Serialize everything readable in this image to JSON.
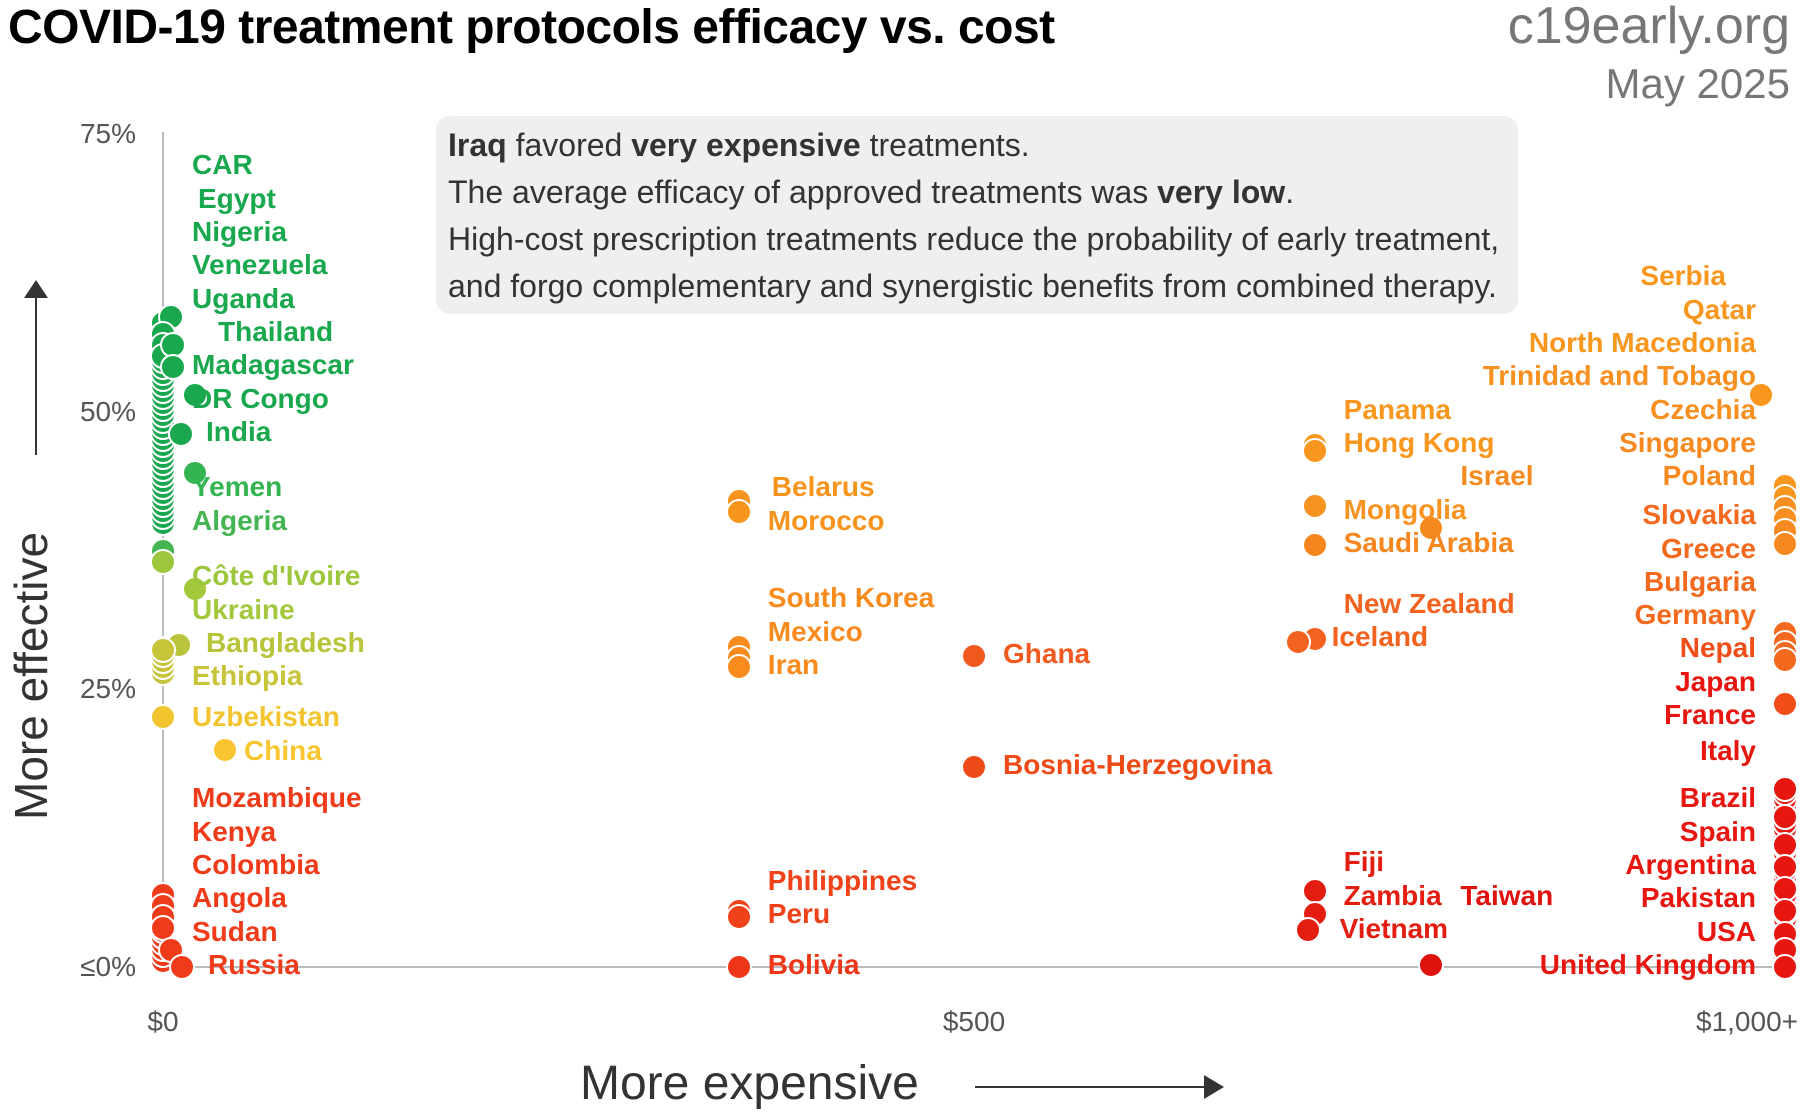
{
  "header": {
    "title": "COVID-19 treatment protocols efficacy vs. cost",
    "brand": "c19early.org",
    "date": "May 2025"
  },
  "info": {
    "line1": [
      "Iraq",
      " favored ",
      "very expensive",
      " treatments."
    ],
    "line2": [
      "The average efficacy of approved treatments was ",
      "very low",
      "."
    ],
    "line3": "High-cost prescription treatments reduce the probability of early treatment,",
    "line4": "and forgo complementary and synergistic benefits from combined therapy."
  },
  "axes": {
    "ylabel": "More effective",
    "xlabel": "More expensive",
    "yticks": [
      "75%",
      "50%",
      "25%",
      "≤0%"
    ],
    "xticks": [
      "$0",
      "$500",
      "$1,000+"
    ]
  },
  "chart_data": {
    "type": "scatter",
    "title": "COVID-19 treatment protocols efficacy vs. cost",
    "xlabel": "More expensive",
    "ylabel": "More effective",
    "xlim": [
      0,
      1000
    ],
    "ylim": [
      0,
      75
    ],
    "x_unit": "$",
    "y_unit": "%",
    "grid": false,
    "points": [
      {
        "name": "CAR",
        "x": 0,
        "y": 58,
        "color": "#1aa84e"
      },
      {
        "name": "Egypt",
        "x": 5,
        "y": 58.5,
        "color": "#1aa84e"
      },
      {
        "name": "Nigeria",
        "x": 0,
        "y": 57,
        "color": "#1aa84e"
      },
      {
        "name": "Venezuela",
        "x": 0,
        "y": 56,
        "color": "#1aa84e"
      },
      {
        "name": "Uganda",
        "x": 0,
        "y": 55,
        "color": "#1aa84e"
      },
      {
        "name": "Thailand",
        "x": 6,
        "y": 56,
        "color": "#1aa84e"
      },
      {
        "name": "Madagascar",
        "x": 6,
        "y": 54,
        "color": "#1aa84e"
      },
      {
        "name": "DR Congo",
        "x": 20,
        "y": 51.5,
        "color": "#1aa84e"
      },
      {
        "name": "India",
        "x": 11,
        "y": 48,
        "color": "#1aa84e"
      },
      {
        "name": "Yemen",
        "x": 20,
        "y": 44.5,
        "color": "#35b552"
      },
      {
        "name": "Algeria",
        "x": 0,
        "y": 37.5,
        "color": "#45b452"
      },
      {
        "name": "Côte d'Ivoire",
        "x": 0,
        "y": 36.5,
        "color": "#9cc63b"
      },
      {
        "name": "Ukraine",
        "x": 20,
        "y": 34,
        "color": "#a3c83c"
      },
      {
        "name": "Bangladesh",
        "x": 10,
        "y": 29,
        "color": "#b8c43a"
      },
      {
        "name": "Ethiopia",
        "x": 0,
        "y": 28.5,
        "color": "#c7c43a"
      },
      {
        "name": "Uzbekistan",
        "x": 0,
        "y": 22.5,
        "color": "#f2c530"
      },
      {
        "name": "China",
        "x": 38,
        "y": 19.5,
        "color": "#f9c530"
      },
      {
        "name": "Mozambique",
        "x": 0,
        "y": 6.5,
        "color": "#ef3b1a"
      },
      {
        "name": "Kenya",
        "x": 0,
        "y": 5.5,
        "color": "#ef3b1a"
      },
      {
        "name": "Colombia",
        "x": 0,
        "y": 4.5,
        "color": "#ef3b1a"
      },
      {
        "name": "Angola",
        "x": 0,
        "y": 3.5,
        "color": "#ef3b1a"
      },
      {
        "name": "Sudan",
        "x": 5,
        "y": 1.5,
        "color": "#ef3b1a"
      },
      {
        "name": "Russia",
        "x": 12,
        "y": 0,
        "color": "#ef3b1a"
      },
      {
        "name": "Belarus",
        "x": 355,
        "y": 42,
        "color": "#f7941d"
      },
      {
        "name": "Morocco",
        "x": 355,
        "y": 41,
        "color": "#f7941d"
      },
      {
        "name": "South Korea",
        "x": 355,
        "y": 28.8,
        "color": "#f98b1e"
      },
      {
        "name": "Mexico",
        "x": 355,
        "y": 27.8,
        "color": "#f98b1e"
      },
      {
        "name": "Iran",
        "x": 355,
        "y": 27,
        "color": "#f98b1e"
      },
      {
        "name": "Ghana",
        "x": 500,
        "y": 28,
        "color": "#f15a1f"
      },
      {
        "name": "Bosnia-Herzegovina",
        "x": 500,
        "y": 18,
        "color": "#ee4a18"
      },
      {
        "name": "Philippines",
        "x": 355,
        "y": 5,
        "color": "#ef4218"
      },
      {
        "name": "Peru",
        "x": 355,
        "y": 4.5,
        "color": "#ef4218"
      },
      {
        "name": "Bolivia",
        "x": 355,
        "y": 0,
        "color": "#ee3517"
      },
      {
        "name": "Panama",
        "x": 710,
        "y": 47,
        "color": "#f8961d"
      },
      {
        "name": "Hong Kong",
        "x": 710,
        "y": 46.5,
        "color": "#f8961d"
      },
      {
        "name": "Israel",
        "x": 782,
        "y": 39.5,
        "color": "#f58a1e"
      },
      {
        "name": "Mongolia",
        "x": 710,
        "y": 41.5,
        "color": "#f79320"
      },
      {
        "name": "Saudi Arabia",
        "x": 710,
        "y": 38,
        "color": "#f6871f"
      },
      {
        "name": "New Zealand",
        "x": 710,
        "y": 29.5,
        "color": "#f3621e"
      },
      {
        "name": "Iceland",
        "x": 700,
        "y": 29.3,
        "color": "#f3621e"
      },
      {
        "name": "Fiji",
        "x": 710,
        "y": 6.8,
        "color": "#e31e10"
      },
      {
        "name": "Zambia",
        "x": 710,
        "y": 4.8,
        "color": "#e31e10"
      },
      {
        "name": "Taiwan",
        "x": 782,
        "y": 0.2,
        "color": "#e0120e"
      },
      {
        "name": "Vietnam",
        "x": 706,
        "y": 3.3,
        "color": "#e31e10"
      },
      {
        "name": "Serbia",
        "x": 985,
        "y": 51.5,
        "color": "#f8961d"
      },
      {
        "name": "Qatar",
        "x": 1000,
        "y": 43.3,
        "color": "#f8961d"
      },
      {
        "name": "North Macedonia",
        "x": 1000,
        "y": 42.3,
        "color": "#f8961d"
      },
      {
        "name": "Trinidad and Tobago",
        "x": 1000,
        "y": 41.3,
        "color": "#f79020"
      },
      {
        "name": "Czechia",
        "x": 1000,
        "y": 40.3,
        "color": "#f79020"
      },
      {
        "name": "Singapore",
        "x": 1000,
        "y": 39.3,
        "color": "#f6891f"
      },
      {
        "name": "Poland",
        "x": 1000,
        "y": 38.1,
        "color": "#f6891f"
      },
      {
        "name": "Slovakia",
        "x": 1000,
        "y": 30.1,
        "color": "#f36a1e"
      },
      {
        "name": "Greece",
        "x": 1000,
        "y": 29.2,
        "color": "#f36a1e"
      },
      {
        "name": "Bulgaria",
        "x": 1000,
        "y": 28.3,
        "color": "#f36a1e"
      },
      {
        "name": "Germany",
        "x": 1000,
        "y": 27.6,
        "color": "#f36a1e"
      },
      {
        "name": "Nepal",
        "x": 1000,
        "y": 23.7,
        "color": "#f04d18"
      },
      {
        "name": "Japan",
        "x": 1000,
        "y": 16,
        "color": "#e7160f"
      },
      {
        "name": "France",
        "x": 1000,
        "y": 13.5,
        "color": "#e7160f"
      },
      {
        "name": "Italy",
        "x": 1000,
        "y": 11,
        "color": "#e7160f"
      },
      {
        "name": "Brazil",
        "x": 1000,
        "y": 9,
        "color": "#e7160f"
      },
      {
        "name": "Spain",
        "x": 1000,
        "y": 7,
        "color": "#e7160f"
      },
      {
        "name": "Argentina",
        "x": 1000,
        "y": 5,
        "color": "#e7160f"
      },
      {
        "name": "Pakistan",
        "x": 1000,
        "y": 3,
        "color": "#e7160f"
      },
      {
        "name": "USA",
        "x": 1000,
        "y": 1.5,
        "color": "#e7160f"
      },
      {
        "name": "United Kingdom",
        "x": 1000,
        "y": 0,
        "color": "#e7160f"
      }
    ],
    "stacks": [
      {
        "x": 0,
        "y_from": 40,
        "y_to": 58,
        "color": "#1aa84e"
      },
      {
        "x": 0,
        "y_from": 26.5,
        "y_to": 29,
        "color": "#c7c43a"
      },
      {
        "x": 0,
        "y_from": 0.5,
        "y_to": 6.5,
        "color": "#ef3b1a"
      },
      {
        "x": 1000,
        "y_from": 0,
        "y_to": 16,
        "color": "#e7160f"
      },
      {
        "x": 1000,
        "y_from": 27.5,
        "y_to": 30,
        "color": "#f36a1e"
      },
      {
        "x": 1000,
        "y_from": 40,
        "y_to": 43.3,
        "color": "#f79020"
      }
    ],
    "labels": [
      {
        "text": "CAR",
        "x": 0,
        "y": 72,
        "color": "#1aa84e"
      },
      {
        "text": "Egypt",
        "x": 0,
        "y": 69,
        "color": "#1aa84e",
        "dx": 6
      },
      {
        "text": "Nigeria",
        "x": 0,
        "y": 66,
        "color": "#1aa84e"
      },
      {
        "text": "Venezuela",
        "x": 0,
        "y": 63,
        "color": "#1aa84e"
      },
      {
        "text": "Uganda",
        "x": 0,
        "y": 60,
        "color": "#1aa84e"
      },
      {
        "text": "Thailand",
        "x": 0,
        "y": 57,
        "color": "#1aa84e",
        "dx": 26
      },
      {
        "text": "Madagascar",
        "x": 0,
        "y": 54,
        "color": "#1aa84e"
      },
      {
        "text": "DR Congo",
        "x": 0,
        "y": 51,
        "color": "#1aa84e"
      },
      {
        "text": "India",
        "x": 0,
        "y": 48,
        "color": "#1aa84e",
        "dx": 14
      },
      {
        "text": "Yemen",
        "x": 0,
        "y": 43,
        "color": "#35b552"
      },
      {
        "text": "Algeria",
        "x": 0,
        "y": 40,
        "color": "#45b452"
      },
      {
        "text": "Côte d'Ivoire",
        "x": 0,
        "y": 35,
        "color": "#9cc63b"
      },
      {
        "text": "Ukraine",
        "x": 0,
        "y": 32,
        "color": "#a3c83c"
      },
      {
        "text": "Bangladesh",
        "x": 0,
        "y": 29,
        "color": "#b8c43a",
        "dx": 14
      },
      {
        "text": "Ethiopia",
        "x": 0,
        "y": 26,
        "color": "#c7c43a"
      },
      {
        "text": "Uzbekistan",
        "x": 0,
        "y": 22.3,
        "color": "#f2c530"
      },
      {
        "text": "China",
        "x": 0,
        "y": 19.3,
        "color": "#f9c530",
        "dx": 52
      },
      {
        "text": "Mozambique",
        "x": 0,
        "y": 15,
        "color": "#ef3b1a"
      },
      {
        "text": "Kenya",
        "x": 0,
        "y": 12,
        "color": "#ef3b1a"
      },
      {
        "text": "Colombia",
        "x": 0,
        "y": 9,
        "color": "#ef3b1a"
      },
      {
        "text": "Angola",
        "x": 0,
        "y": 6,
        "color": "#ef3b1a"
      },
      {
        "text": "Sudan",
        "x": 0,
        "y": 3,
        "color": "#ef3b1a"
      },
      {
        "text": "Russia",
        "x": 0,
        "y": 0,
        "color": "#ef3b1a",
        "dx": 16
      },
      {
        "text": "Belarus",
        "x": 355,
        "y": 43,
        "color": "#f7941d",
        "dx": 4
      },
      {
        "text": "Morocco",
        "x": 355,
        "y": 40,
        "color": "#f7941d"
      },
      {
        "text": "South Korea",
        "x": 355,
        "y": 33,
        "color": "#f98b1e"
      },
      {
        "text": "Mexico",
        "x": 355,
        "y": 30,
        "color": "#f98b1e"
      },
      {
        "text": "Iran",
        "x": 355,
        "y": 27,
        "color": "#f98b1e"
      },
      {
        "text": "Ghana",
        "x": 500,
        "y": 28,
        "color": "#f15a1f"
      },
      {
        "text": "Bosnia-Herzegovina",
        "x": 500,
        "y": 18,
        "color": "#ee4a18"
      },
      {
        "text": "Philippines",
        "x": 355,
        "y": 7.6,
        "color": "#ef4218"
      },
      {
        "text": "Peru",
        "x": 355,
        "y": 4.6,
        "color": "#ef4218"
      },
      {
        "text": "Bolivia",
        "x": 355,
        "y": 0,
        "color": "#ee3517"
      },
      {
        "text": "Panama",
        "x": 710,
        "y": 50,
        "color": "#f8961d"
      },
      {
        "text": "Hong Kong",
        "x": 710,
        "y": 47,
        "color": "#f8961d"
      },
      {
        "text": "Israel",
        "x": 782,
        "y": 44,
        "color": "#f58a1e",
        "dx": 0
      },
      {
        "text": "Mongolia",
        "x": 710,
        "y": 41,
        "color": "#f79320"
      },
      {
        "text": "Saudi Arabia",
        "x": 710,
        "y": 38,
        "color": "#f6871f"
      },
      {
        "text": "New Zealand",
        "x": 710,
        "y": 32.5,
        "color": "#f3621e"
      },
      {
        "text": "Iceland",
        "x": 710,
        "y": 29.5,
        "color": "#f3621e",
        "dx": -12
      },
      {
        "text": "Fiji",
        "x": 710,
        "y": 9.3,
        "color": "#e31e10"
      },
      {
        "text": "Zambia",
        "x": 710,
        "y": 6.2,
        "color": "#e31e10"
      },
      {
        "text": "Taiwan",
        "x": 782,
        "y": 6.2,
        "color": "#e0120e",
        "dx": 0
      },
      {
        "text": "Vietnam",
        "x": 710,
        "y": 3.2,
        "color": "#e31e10",
        "dx": -4
      }
    ],
    "right_labels": [
      {
        "text": "Serbia",
        "y": 62,
        "color": "#f8961d",
        "dx": -30
      },
      {
        "text": "Qatar",
        "y": 59,
        "color": "#f8961d"
      },
      {
        "text": "North Macedonia",
        "y": 56,
        "color": "#f8961d"
      },
      {
        "text": "Trinidad and Tobago",
        "y": 53,
        "color": "#f79020"
      },
      {
        "text": "Czechia",
        "y": 50,
        "color": "#f79020"
      },
      {
        "text": "Singapore",
        "y": 47,
        "color": "#f6891f"
      },
      {
        "text": "Poland",
        "y": 44,
        "color": "#f6891f"
      },
      {
        "text": "Slovakia",
        "y": 40.5,
        "color": "#f36a1e"
      },
      {
        "text": "Greece",
        "y": 37.5,
        "color": "#f36a1e"
      },
      {
        "text": "Bulgaria",
        "y": 34.5,
        "color": "#f36a1e"
      },
      {
        "text": "Germany",
        "y": 31.5,
        "color": "#f36a1e"
      },
      {
        "text": "Nepal",
        "y": 28.5,
        "color": "#f04d18"
      },
      {
        "text": "Japan",
        "y": 25.5,
        "color": "#e7160f"
      },
      {
        "text": "France",
        "y": 22.5,
        "color": "#e7160f"
      },
      {
        "text": "Italy",
        "y": 19.3,
        "color": "#e7160f"
      },
      {
        "text": "Brazil",
        "y": 15,
        "color": "#e7160f"
      },
      {
        "text": "Spain",
        "y": 12,
        "color": "#e7160f"
      },
      {
        "text": "Argentina",
        "y": 9,
        "color": "#e7160f"
      },
      {
        "text": "Pakistan",
        "y": 6,
        "color": "#e7160f"
      },
      {
        "text": "USA",
        "y": 3,
        "color": "#e7160f"
      },
      {
        "text": "United Kingdom",
        "y": 0,
        "color": "#e7160f"
      }
    ]
  }
}
